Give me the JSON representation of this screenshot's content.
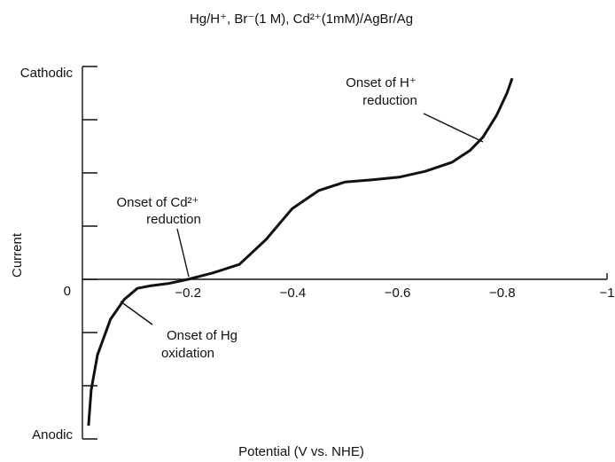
{
  "chart_data": {
    "type": "line",
    "title": "Hg/H⁺, Br⁻(1 M), Cd²⁺(1mM)/AgBr/Ag",
    "x_label": "Potential (V vs. NHE)",
    "y_label": "Current",
    "xlim": [
      0,
      -1
    ],
    "ylim": [
      -3,
      4
    ],
    "xticks": [
      {
        "value": -0.2,
        "label": "−0.2"
      },
      {
        "value": -0.4,
        "label": "−0.4"
      },
      {
        "value": -0.6,
        "label": "−0.6"
      },
      {
        "value": -0.8,
        "label": "−0.8"
      },
      {
        "value": -1,
        "label": "−1"
      }
    ],
    "yticks": [
      {
        "value": -3,
        "label": "Anodic"
      },
      {
        "value": -2,
        "label": null
      },
      {
        "value": -1,
        "label": null
      },
      0,
      {
        "value": 1,
        "label": null
      },
      {
        "value": 2,
        "label": null
      },
      {
        "value": 3,
        "label": null
      },
      {
        "value": 4,
        "label": "Cathodic"
      }
    ],
    "x": [
      -0.01,
      -0.015,
      -0.027,
      -0.052,
      -0.078,
      -0.103,
      -0.129,
      -0.162,
      -0.2,
      -0.247,
      -0.298,
      -0.349,
      -0.399,
      -0.45,
      -0.5,
      -0.552,
      -0.603,
      -0.653,
      -0.704,
      -0.738,
      -0.763,
      -0.789,
      -0.809,
      -0.819
    ],
    "series": [
      {
        "name": "Current",
        "color": "#111111",
        "values": [
          -2.75,
          -2.08,
          -1.42,
          -0.75,
          -0.38,
          -0.17,
          -0.12,
          -0.08,
          0,
          0.12,
          0.28,
          0.75,
          1.33,
          1.67,
          1.83,
          1.87,
          1.92,
          2.03,
          2.2,
          2.42,
          2.67,
          3.08,
          3.5,
          3.78
        ]
      }
    ],
    "annotations": [
      {
        "lines": [
          "Onset of H⁺",
          "reduction"
        ]
      },
      {
        "lines": [
          "Onset of Cd²⁺",
          "reduction"
        ]
      },
      {
        "lines": [
          "Onset of Hg",
          "oxidation"
        ]
      }
    ]
  }
}
